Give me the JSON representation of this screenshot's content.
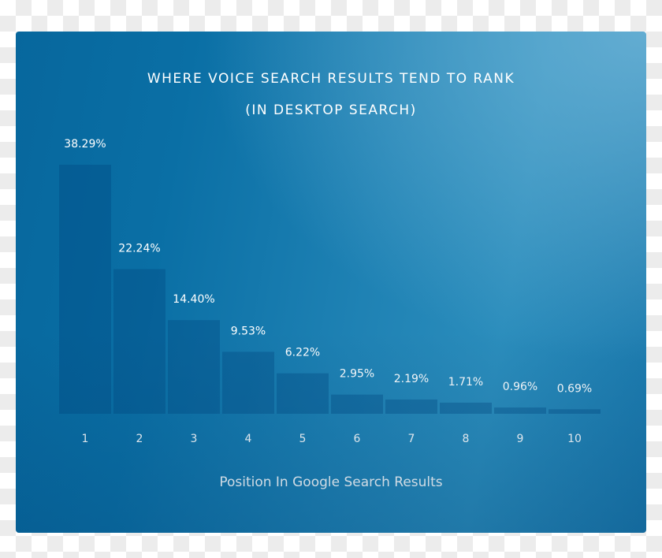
{
  "chart_data": {
    "type": "bar",
    "title": "WHERE VOICE SEARCH RESULTS TEND TO RANK",
    "subtitle": "(IN DESKTOP SEARCH)",
    "xlabel": "Position In Google Search Results",
    "ylabel": "",
    "categories": [
      "1",
      "2",
      "3",
      "4",
      "5",
      "6",
      "7",
      "8",
      "9",
      "10"
    ],
    "values": [
      38.29,
      22.24,
      14.4,
      9.53,
      6.22,
      2.95,
      2.19,
      1.71,
      0.96,
      0.69
    ],
    "data_labels": [
      "38.29%",
      "22.24%",
      "14.40%",
      "9.53%",
      "6.22%",
      "2.95%",
      "2.19%",
      "1.71%",
      "0.96%",
      "0.69%"
    ],
    "ylim": [
      0,
      38.29
    ],
    "grid": false,
    "legend": "none",
    "colors": {
      "background": "#0a6fa5",
      "bar": "#0a5f94",
      "text": "#ffffff"
    }
  }
}
